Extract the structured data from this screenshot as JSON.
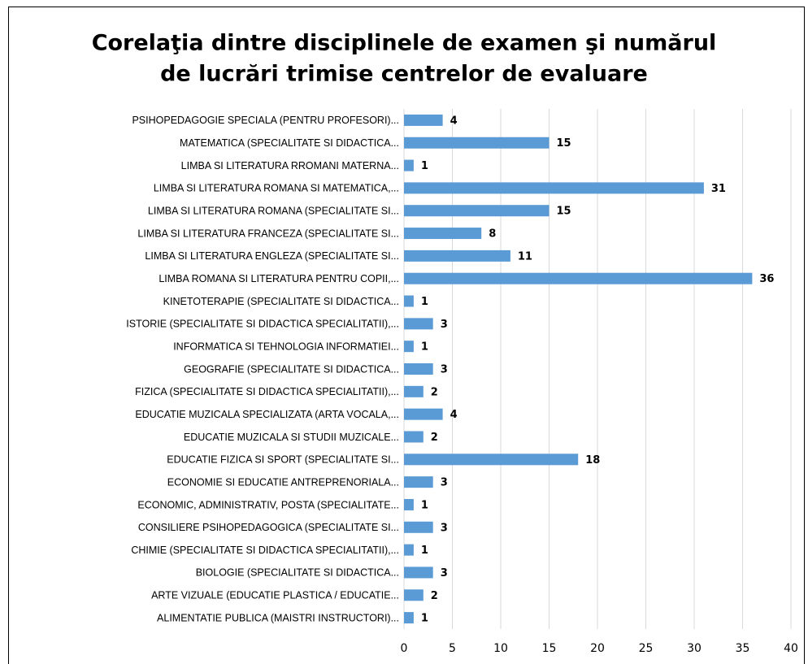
{
  "chart_data": {
    "type": "barh",
    "title": [
      "Corelaţia dintre disciplinele de examen şi numărul",
      "de lucrări trimise centrelor de evaluare"
    ],
    "categories": [
      "PSIHOPEDAGOGIE SPECIALA (PENTRU PROFESORI)...",
      "MATEMATICA (SPECIALITATE SI DIDACTICA...",
      "LIMBA SI LITERATURA RROMANI MATERNA...",
      "LIMBA SI LITERATURA ROMANA SI MATEMATICA,...",
      "LIMBA SI LITERATURA ROMANA (SPECIALITATE SI...",
      "LIMBA SI LITERATURA FRANCEZA (SPECIALITATE SI...",
      "LIMBA SI LITERATURA ENGLEZA (SPECIALITATE SI...",
      "LIMBA ROMANA SI LITERATURA PENTRU COPII,...",
      "KINETOTERAPIE (SPECIALITATE SI DIDACTICA...",
      "ISTORIE (SPECIALITATE SI DIDACTICA SPECIALITATII),...",
      "INFORMATICA SI TEHNOLOGIA INFORMATIEI...",
      "GEOGRAFIE (SPECIALITATE SI DIDACTICA...",
      "FIZICA (SPECIALITATE SI DIDACTICA SPECIALITATII),...",
      "EDUCATIE MUZICALA SPECIALIZATA (ARTA VOCALA,...",
      "EDUCATIE MUZICALA SI STUDII MUZICALE...",
      "EDUCATIE FIZICA SI SPORT (SPECIALITATE SI...",
      "ECONOMIE SI EDUCATIE ANTREPRENORIALA...",
      "ECONOMIC, ADMINISTRATIV, POSTA (SPECIALITATE...",
      "CONSILIERE PSIHOPEDAGOGICA (SPECIALITATE SI...",
      "CHIMIE (SPECIALITATE SI DIDACTICA SPECIALITATII),...",
      "BIOLOGIE (SPECIALITATE SI DIDACTICA...",
      "ARTE VIZUALE (EDUCATIE PLASTICA / EDUCATIE...",
      "ALIMENTATIE PUBLICA (MAISTRI INSTRUCTORI)..."
    ],
    "values": [
      4,
      15,
      1,
      31,
      15,
      8,
      11,
      36,
      1,
      3,
      1,
      3,
      2,
      4,
      2,
      18,
      3,
      1,
      3,
      1,
      3,
      2,
      1
    ],
    "color": "#5b9bd5",
    "xlim": [
      0,
      40
    ],
    "xticks": [
      0,
      5,
      10,
      15,
      20,
      25,
      30,
      35,
      40
    ],
    "grid": true
  }
}
